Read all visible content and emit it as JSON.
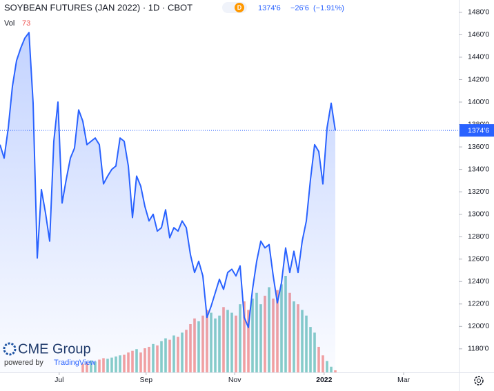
{
  "chart_data": {
    "type": "line",
    "title": "SOYBEAN FUTURES (JAN 2022) · 1D · CBOT",
    "interval_badge": "D",
    "last_price_label": "1374'6",
    "change_label": "−26'6",
    "change_pct_label": "(−1.91%)",
    "volume_label": "Vol",
    "volume_last": 73,
    "logo": "CME Group",
    "powered_by": "powered by",
    "powered_brand": "TradingView",
    "color": "#2962ff",
    "up_color": "#26a69a",
    "down_color": "#ef5350",
    "values": [
      1362,
      1350,
      1377,
      1414,
      1437,
      1448,
      1457,
      1462,
      1399,
      1261,
      1322,
      1301,
      1276,
      1365,
      1400,
      1310,
      1331,
      1350,
      1359,
      1393,
      1383,
      1362,
      1365,
      1368,
      1362,
      1327,
      1334,
      1340,
      1343,
      1368,
      1365,
      1343,
      1297,
      1334,
      1325,
      1307,
      1294,
      1300,
      1285,
      1288,
      1304,
      1279,
      1288,
      1285,
      1294,
      1288,
      1264,
      1248,
      1258,
      1245,
      1208,
      1218,
      1230,
      1242,
      1233,
      1248,
      1251,
      1245,
      1254,
      1208,
      1199,
      1233,
      1258,
      1276,
      1270,
      1273,
      1245,
      1221,
      1239,
      1270,
      1248,
      1267,
      1248,
      1276,
      1294,
      1331,
      1362,
      1356,
      1327,
      1377,
      1399,
      1374.75
    ],
    "volume": [
      null,
      null,
      null,
      null,
      null,
      null,
      null,
      null,
      null,
      null,
      null,
      null,
      null,
      null,
      null,
      null,
      null,
      null,
      null,
      null,
      300,
      350,
      420,
      380,
      450,
      500,
      480,
      520,
      560,
      600,
      620,
      700,
      760,
      820,
      700,
      850,
      900,
      1000,
      950,
      1100,
      1200,
      1150,
      1300,
      1250,
      1400,
      1500,
      1700,
      1900,
      1800,
      2000,
      2200,
      2100,
      1900,
      2000,
      2300,
      2200,
      2100,
      2000,
      2400,
      2500,
      2200,
      2600,
      2800,
      2400,
      2700,
      3000,
      2600,
      2900,
      3100,
      3400,
      2800,
      2500,
      2400,
      2200,
      2000,
      1600,
      1400,
      900,
      600,
      400,
      200,
      73
    ],
    "xlim": [
      0,
      111
    ],
    "xticks": [
      {
        "value": 14.3,
        "label": "Jul"
      },
      {
        "value": 35.3,
        "label": "Sep"
      },
      {
        "value": 56.7,
        "label": "Nov"
      },
      {
        "value": 78.3,
        "label": "2022"
      },
      {
        "value": 97.5,
        "label": "Mar"
      }
    ],
    "ylim": [
      1159,
      1491
    ],
    "yticks": [
      {
        "value": 1480,
        "label": "1480'0"
      },
      {
        "value": 1460,
        "label": "1460'0"
      },
      {
        "value": 1440,
        "label": "1440'0"
      },
      {
        "value": 1420,
        "label": "1420'0"
      },
      {
        "value": 1400,
        "label": "1400'0"
      },
      {
        "value": 1380,
        "label": "1380'0"
      },
      {
        "value": 1360,
        "label": "1360'0"
      },
      {
        "value": 1340,
        "label": "1340'0"
      },
      {
        "value": 1320,
        "label": "1320'0"
      },
      {
        "value": 1300,
        "label": "1300'0"
      },
      {
        "value": 1280,
        "label": "1280'0"
      },
      {
        "value": 1260,
        "label": "1260'0"
      },
      {
        "value": 1240,
        "label": "1240'0"
      },
      {
        "value": 1220,
        "label": "1220'0"
      },
      {
        "value": 1200,
        "label": "1200'0"
      },
      {
        "value": 1180,
        "label": "1180'0"
      }
    ]
  }
}
